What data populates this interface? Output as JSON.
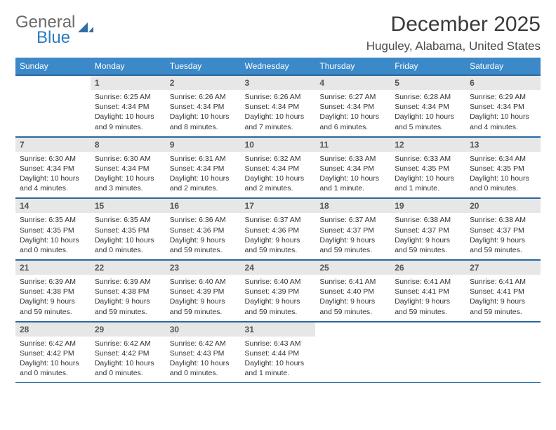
{
  "brand": {
    "line1": "General",
    "line2": "Blue"
  },
  "title": "December 2025",
  "location": "Huguley, Alabama, United States",
  "colors": {
    "header_bg": "#3b89c9",
    "header_text": "#ffffff",
    "rule": "#29689f",
    "daynum_bg": "#e7e7e7",
    "brand_blue": "#2c7bc0",
    "text": "#3a3a3a"
  },
  "day_headers": [
    "Sunday",
    "Monday",
    "Tuesday",
    "Wednesday",
    "Thursday",
    "Friday",
    "Saturday"
  ],
  "weeks": [
    [
      {
        "n": "",
        "sunrise": "",
        "sunset": "",
        "daylight": ""
      },
      {
        "n": "1",
        "sunrise": "Sunrise: 6:25 AM",
        "sunset": "Sunset: 4:34 PM",
        "daylight": "Daylight: 10 hours and 9 minutes."
      },
      {
        "n": "2",
        "sunrise": "Sunrise: 6:26 AM",
        "sunset": "Sunset: 4:34 PM",
        "daylight": "Daylight: 10 hours and 8 minutes."
      },
      {
        "n": "3",
        "sunrise": "Sunrise: 6:26 AM",
        "sunset": "Sunset: 4:34 PM",
        "daylight": "Daylight: 10 hours and 7 minutes."
      },
      {
        "n": "4",
        "sunrise": "Sunrise: 6:27 AM",
        "sunset": "Sunset: 4:34 PM",
        "daylight": "Daylight: 10 hours and 6 minutes."
      },
      {
        "n": "5",
        "sunrise": "Sunrise: 6:28 AM",
        "sunset": "Sunset: 4:34 PM",
        "daylight": "Daylight: 10 hours and 5 minutes."
      },
      {
        "n": "6",
        "sunrise": "Sunrise: 6:29 AM",
        "sunset": "Sunset: 4:34 PM",
        "daylight": "Daylight: 10 hours and 4 minutes."
      }
    ],
    [
      {
        "n": "7",
        "sunrise": "Sunrise: 6:30 AM",
        "sunset": "Sunset: 4:34 PM",
        "daylight": "Daylight: 10 hours and 4 minutes."
      },
      {
        "n": "8",
        "sunrise": "Sunrise: 6:30 AM",
        "sunset": "Sunset: 4:34 PM",
        "daylight": "Daylight: 10 hours and 3 minutes."
      },
      {
        "n": "9",
        "sunrise": "Sunrise: 6:31 AM",
        "sunset": "Sunset: 4:34 PM",
        "daylight": "Daylight: 10 hours and 2 minutes."
      },
      {
        "n": "10",
        "sunrise": "Sunrise: 6:32 AM",
        "sunset": "Sunset: 4:34 PM",
        "daylight": "Daylight: 10 hours and 2 minutes."
      },
      {
        "n": "11",
        "sunrise": "Sunrise: 6:33 AM",
        "sunset": "Sunset: 4:34 PM",
        "daylight": "Daylight: 10 hours and 1 minute."
      },
      {
        "n": "12",
        "sunrise": "Sunrise: 6:33 AM",
        "sunset": "Sunset: 4:35 PM",
        "daylight": "Daylight: 10 hours and 1 minute."
      },
      {
        "n": "13",
        "sunrise": "Sunrise: 6:34 AM",
        "sunset": "Sunset: 4:35 PM",
        "daylight": "Daylight: 10 hours and 0 minutes."
      }
    ],
    [
      {
        "n": "14",
        "sunrise": "Sunrise: 6:35 AM",
        "sunset": "Sunset: 4:35 PM",
        "daylight": "Daylight: 10 hours and 0 minutes."
      },
      {
        "n": "15",
        "sunrise": "Sunrise: 6:35 AM",
        "sunset": "Sunset: 4:35 PM",
        "daylight": "Daylight: 10 hours and 0 minutes."
      },
      {
        "n": "16",
        "sunrise": "Sunrise: 6:36 AM",
        "sunset": "Sunset: 4:36 PM",
        "daylight": "Daylight: 9 hours and 59 minutes."
      },
      {
        "n": "17",
        "sunrise": "Sunrise: 6:37 AM",
        "sunset": "Sunset: 4:36 PM",
        "daylight": "Daylight: 9 hours and 59 minutes."
      },
      {
        "n": "18",
        "sunrise": "Sunrise: 6:37 AM",
        "sunset": "Sunset: 4:37 PM",
        "daylight": "Daylight: 9 hours and 59 minutes."
      },
      {
        "n": "19",
        "sunrise": "Sunrise: 6:38 AM",
        "sunset": "Sunset: 4:37 PM",
        "daylight": "Daylight: 9 hours and 59 minutes."
      },
      {
        "n": "20",
        "sunrise": "Sunrise: 6:38 AM",
        "sunset": "Sunset: 4:37 PM",
        "daylight": "Daylight: 9 hours and 59 minutes."
      }
    ],
    [
      {
        "n": "21",
        "sunrise": "Sunrise: 6:39 AM",
        "sunset": "Sunset: 4:38 PM",
        "daylight": "Daylight: 9 hours and 59 minutes."
      },
      {
        "n": "22",
        "sunrise": "Sunrise: 6:39 AM",
        "sunset": "Sunset: 4:38 PM",
        "daylight": "Daylight: 9 hours and 59 minutes."
      },
      {
        "n": "23",
        "sunrise": "Sunrise: 6:40 AM",
        "sunset": "Sunset: 4:39 PM",
        "daylight": "Daylight: 9 hours and 59 minutes."
      },
      {
        "n": "24",
        "sunrise": "Sunrise: 6:40 AM",
        "sunset": "Sunset: 4:39 PM",
        "daylight": "Daylight: 9 hours and 59 minutes."
      },
      {
        "n": "25",
        "sunrise": "Sunrise: 6:41 AM",
        "sunset": "Sunset: 4:40 PM",
        "daylight": "Daylight: 9 hours and 59 minutes."
      },
      {
        "n": "26",
        "sunrise": "Sunrise: 6:41 AM",
        "sunset": "Sunset: 4:41 PM",
        "daylight": "Daylight: 9 hours and 59 minutes."
      },
      {
        "n": "27",
        "sunrise": "Sunrise: 6:41 AM",
        "sunset": "Sunset: 4:41 PM",
        "daylight": "Daylight: 9 hours and 59 minutes."
      }
    ],
    [
      {
        "n": "28",
        "sunrise": "Sunrise: 6:42 AM",
        "sunset": "Sunset: 4:42 PM",
        "daylight": "Daylight: 10 hours and 0 minutes."
      },
      {
        "n": "29",
        "sunrise": "Sunrise: 6:42 AM",
        "sunset": "Sunset: 4:42 PM",
        "daylight": "Daylight: 10 hours and 0 minutes."
      },
      {
        "n": "30",
        "sunrise": "Sunrise: 6:42 AM",
        "sunset": "Sunset: 4:43 PM",
        "daylight": "Daylight: 10 hours and 0 minutes."
      },
      {
        "n": "31",
        "sunrise": "Sunrise: 6:43 AM",
        "sunset": "Sunset: 4:44 PM",
        "daylight": "Daylight: 10 hours and 1 minute."
      },
      {
        "n": "",
        "sunrise": "",
        "sunset": "",
        "daylight": ""
      },
      {
        "n": "",
        "sunrise": "",
        "sunset": "",
        "daylight": ""
      },
      {
        "n": "",
        "sunrise": "",
        "sunset": "",
        "daylight": ""
      }
    ]
  ]
}
